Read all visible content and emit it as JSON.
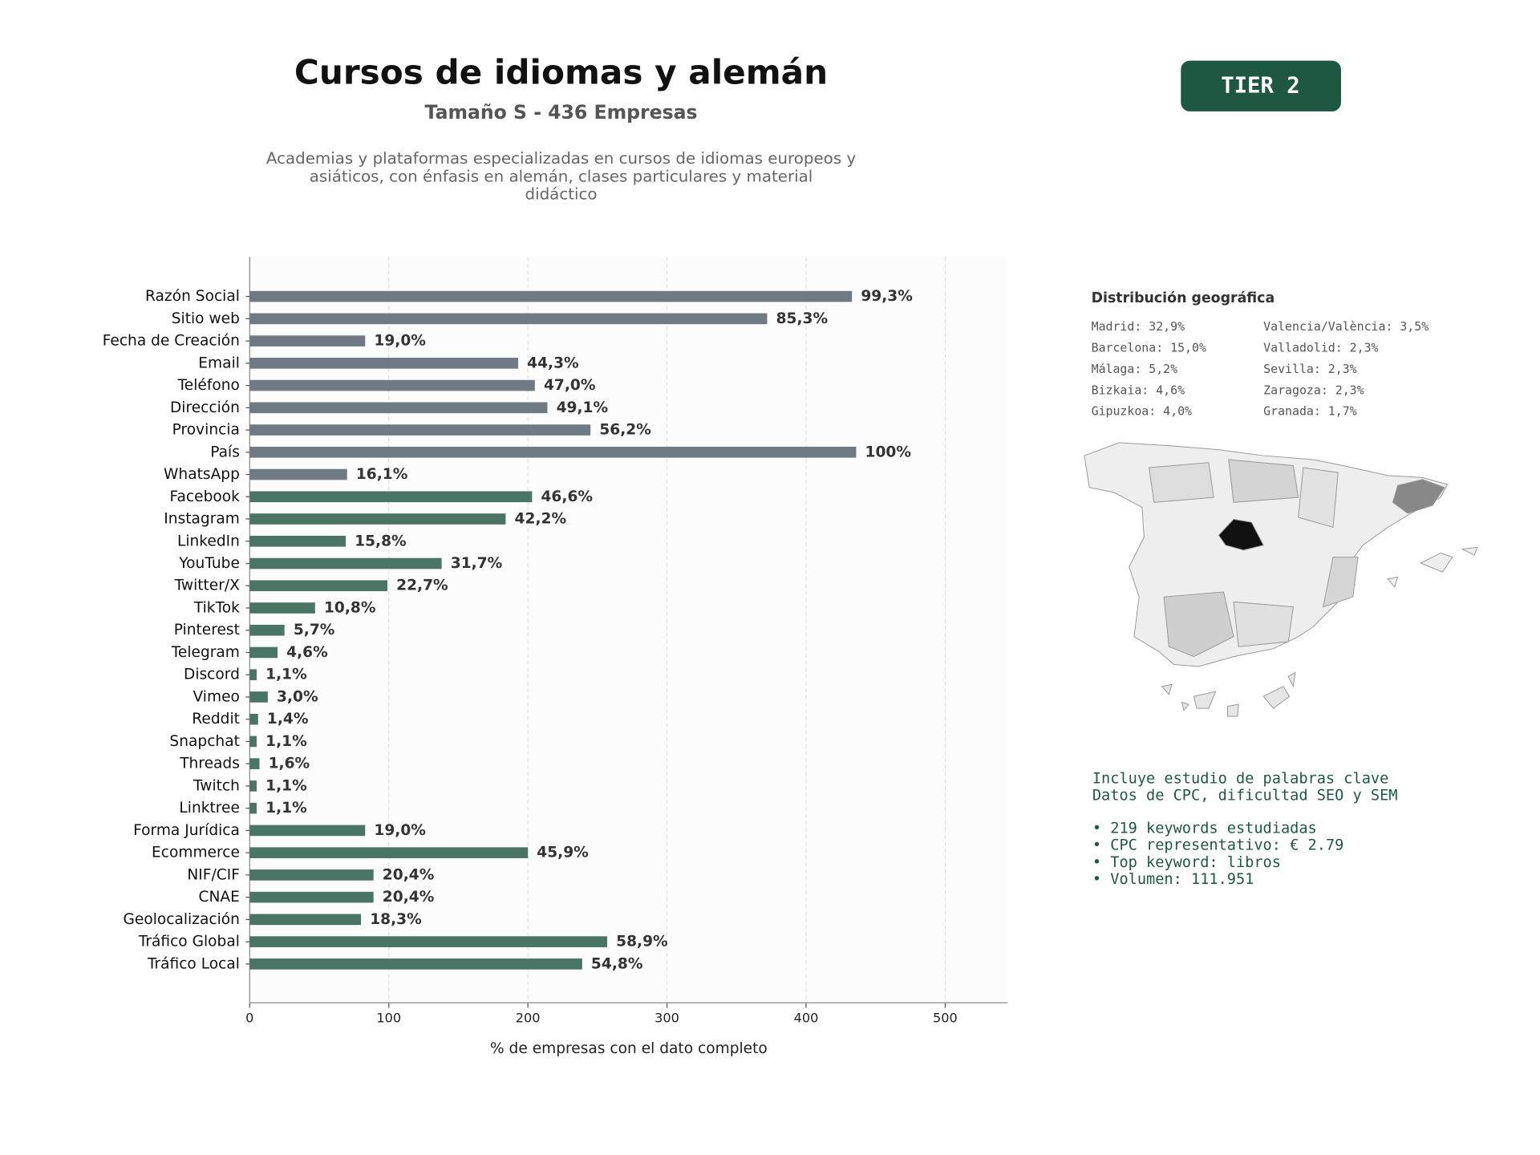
{
  "header": {
    "title": "Cursos de idiomas y alemán",
    "subtitle": "Tamaño S - 436 Empresas",
    "description": [
      "Academias y plataformas especializadas en cursos de idiomas europeos y",
      "asiáticos, con énfasis en alemán, clases particulares y material",
      "didáctico"
    ]
  },
  "badge": "TIER 2",
  "geo": {
    "title": "Distribución geográfica",
    "items": [
      "Madrid: 32,9%",
      "Barcelona: 15,0%",
      "Málaga: 5,2%",
      "Bizkaia: 4,6%",
      "Gipuzkoa: 4,0%",
      "Valencia/València: 3,5%",
      "Valladolid: 2,3%",
      "Sevilla: 2,3%",
      "Zaragoza: 2,3%",
      "Granada: 1,7%"
    ]
  },
  "keywords": {
    "intro": [
      "Incluye estudio de palabras clave",
      "Datos de CPC, dificultad SEO y SEM"
    ],
    "bullets": [
      "• 219 keywords estudiadas",
      "• CPC representativo: € 2.79",
      "• Top keyword: libros",
      "• Volumen: 111.951"
    ]
  },
  "chart_data": {
    "type": "barh",
    "xlabel": "% de empresas con el dato completo",
    "categories": [
      "Razón Social",
      "Sitio web",
      "Fecha de Creación",
      "Email",
      "Teléfono",
      "Dirección",
      "Provincia",
      "País",
      "WhatsApp",
      "Facebook",
      "Instagram",
      "LinkedIn",
      "YouTube",
      "Twitter/X",
      "TikTok",
      "Pinterest",
      "Telegram",
      "Discord",
      "Vimeo",
      "Reddit",
      "Snapchat",
      "Threads",
      "Twitch",
      "Linktree",
      "Forma Jurídica",
      "Ecommerce",
      "NIF/CIF",
      "CNAE",
      "Geolocalización",
      "Tráfico Global",
      "Tráfico Local"
    ],
    "values": [
      433,
      372,
      83,
      193,
      205,
      214,
      245,
      436,
      70,
      203,
      184,
      69,
      138,
      99,
      47,
      25,
      20,
      5,
      13,
      6,
      5,
      7,
      5,
      5,
      83,
      200,
      89,
      89,
      80,
      257,
      239
    ],
    "value_labels": [
      "99,3%",
      "85,3%",
      "19,0%",
      "44,3%",
      "47,0%",
      "49,1%",
      "56,2%",
      "100%",
      "16,1%",
      "46,6%",
      "42,2%",
      "15,8%",
      "31,7%",
      "22,7%",
      "10,8%",
      "5,7%",
      "4,6%",
      "1,1%",
      "3,0%",
      "1,4%",
      "1,1%",
      "1,6%",
      "1,1%",
      "1,1%",
      "19,0%",
      "45,9%",
      "20,4%",
      "20,4%",
      "18,3%",
      "58,9%",
      "54,8%"
    ],
    "colors": [
      "#6f7a85",
      "#6f7a85",
      "#6f7a85",
      "#6f7a85",
      "#6f7a85",
      "#6f7a85",
      "#6f7a85",
      "#6f7a85",
      "#6f7a85",
      "#4a7565",
      "#4a7565",
      "#4a7565",
      "#4a7565",
      "#4a7565",
      "#4a7565",
      "#4a7565",
      "#4a7565",
      "#4a7565",
      "#4a7565",
      "#4a7565",
      "#4a7565",
      "#4a7565",
      "#4a7565",
      "#4a7565",
      "#4a7565",
      "#4a7565",
      "#4a7565",
      "#4a7565",
      "#4a7565",
      "#4a7565",
      "#4a7565"
    ],
    "xlim": [
      0,
      545
    ],
    "xticks": [
      0,
      100,
      200,
      300,
      400,
      500
    ],
    "grid": true
  }
}
